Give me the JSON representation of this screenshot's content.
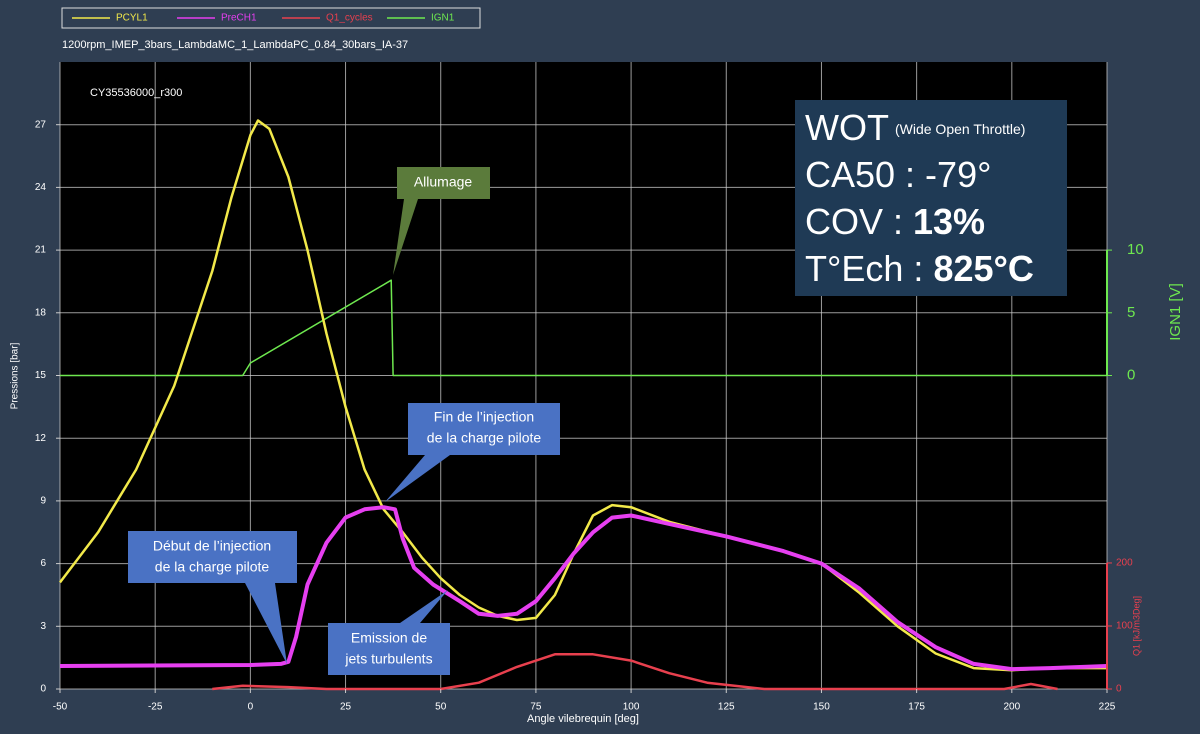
{
  "chart_data": {
    "type": "line",
    "subtitle": "1200rpm_IMEP_3bars_LambdaMC_1_LambdaPC_0.84_30bars_IA-37",
    "x_label": "Angle vilebrequin [deg]",
    "y_label": "Pressions [bar]",
    "y2_label": "IGN1 [V]",
    "y3_label": "Q1 [kJ/m3Deg]",
    "xlim": [
      -50,
      225
    ],
    "xticks": [
      -50,
      -25,
      0,
      25,
      50,
      75,
      100,
      125,
      150,
      175,
      200,
      225
    ],
    "ylim": [
      0,
      30
    ],
    "yticks": [
      0,
      3,
      6,
      9,
      12,
      15,
      18,
      21,
      24,
      27
    ],
    "y2lim": [
      -25,
      25
    ],
    "y2ticks": [
      0,
      5,
      10
    ],
    "y3lim": [
      0,
      995
    ],
    "y3ticks": [
      0,
      100,
      200
    ],
    "grid": true,
    "series": [
      {
        "name": "PCYL1",
        "color": "#f2e94a",
        "axis": "y",
        "x": [
          -50,
          -40,
          -30,
          -20,
          -10,
          -5,
          0,
          2,
          5,
          10,
          15,
          20,
          25,
          30,
          35,
          40,
          45,
          50,
          55,
          60,
          65,
          70,
          75,
          80,
          85,
          90,
          95,
          100,
          110,
          125,
          140,
          150,
          160,
          170,
          180,
          190,
          200,
          210,
          225
        ],
        "values": [
          5.1,
          7.5,
          10.5,
          14.5,
          20,
          23.5,
          26.5,
          27.2,
          26.8,
          24.5,
          21,
          17,
          13.5,
          10.5,
          8.6,
          7.5,
          6.3,
          5.3,
          4.5,
          3.9,
          3.5,
          3.3,
          3.4,
          4.5,
          6.5,
          8.3,
          8.8,
          8.7,
          8.0,
          7.3,
          6.6,
          6.0,
          4.6,
          3.0,
          1.7,
          1.0,
          0.9,
          1.0,
          1.0
        ]
      },
      {
        "name": "PreCH1",
        "color": "#e63ff0",
        "axis": "y",
        "x": [
          -50,
          0,
          8,
          10,
          12,
          15,
          20,
          25,
          30,
          35,
          38,
          40,
          43,
          48,
          55,
          60,
          65,
          70,
          75,
          80,
          85,
          90,
          95,
          100,
          110,
          125,
          140,
          150,
          160,
          170,
          180,
          190,
          200,
          210,
          225
        ],
        "values": [
          1.1,
          1.15,
          1.2,
          1.3,
          2.5,
          5,
          7,
          8.2,
          8.6,
          8.7,
          8.6,
          7.2,
          5.8,
          5.0,
          4.2,
          3.6,
          3.5,
          3.6,
          4.2,
          5.3,
          6.5,
          7.5,
          8.2,
          8.3,
          7.9,
          7.3,
          6.6,
          6.0,
          4.8,
          3.2,
          2.0,
          1.2,
          0.95,
          1.0,
          1.1
        ]
      },
      {
        "name": "Q1_cycles",
        "color": "#e8404e",
        "axis": "y3",
        "x": [
          -10,
          -2,
          10,
          20,
          50,
          60,
          70,
          80,
          90,
          100,
          110,
          120,
          135,
          198,
          205,
          212
        ],
        "values": [
          0,
          5,
          3,
          0,
          0,
          10,
          35,
          55,
          55,
          45,
          25,
          10,
          0,
          0,
          8,
          0
        ]
      },
      {
        "name": "IGN1",
        "color": "#6ee84f",
        "axis": "y2",
        "x": [
          -50,
          -2,
          0,
          37,
          37.5,
          225
        ],
        "values": [
          0,
          0,
          1.0,
          7.6,
          0,
          0
        ]
      }
    ],
    "annotations": [
      {
        "lines": [
          "CY35536000_r300"
        ]
      },
      {
        "lines": [
          "Allumage"
        ]
      },
      {
        "lines": [
          "Fin de l’injection",
          "de la charge pilote"
        ]
      },
      {
        "lines": [
          "Début de l’injection",
          "de la charge pilote"
        ]
      },
      {
        "lines": [
          "Emission de",
          "jets turbulents"
        ]
      }
    ],
    "info_box": [
      {
        "text": "WOT",
        "note": "(Wide Open Throttle)"
      },
      {
        "text": "CA50 : -79°"
      },
      {
        "text": "COV :",
        "bold": "13%"
      },
      {
        "text": "T°Ech :",
        "bold": "825°C"
      }
    ]
  }
}
